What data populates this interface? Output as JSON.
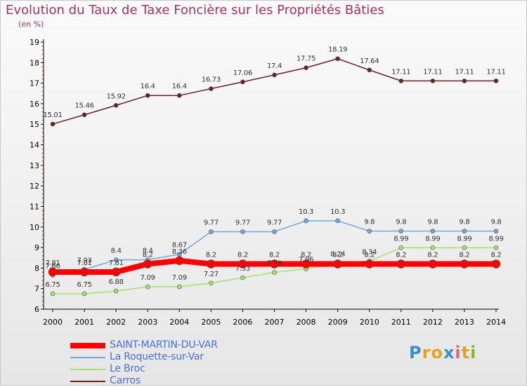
{
  "title": "Evolution du Taux de Taxe Foncière sur les Propriétés Bâties",
  "subtitle": "(en %)",
  "logo": {
    "text": "Proxiti",
    "letters": [
      "P",
      "r",
      "o",
      "x",
      "i",
      "t",
      "i"
    ],
    "colors": [
      "#3a8fd0",
      "#e8a020",
      "#e8a020",
      "#3a8fd0",
      "#e06080",
      "#e8a020",
      "#80b830"
    ]
  },
  "legend": [
    {
      "label": "SAINT-MARTIN-DU-VAR",
      "color": "#ff0000"
    },
    {
      "label": "La Roquette-sur-Var",
      "color": "#6fa8dc"
    },
    {
      "label": "Le Broc",
      "color": "#a8e070"
    },
    {
      "label": "Carros",
      "color": "#6b1f1f"
    }
  ],
  "chart_data": {
    "type": "line",
    "title": "Evolution du Taux de Taxe Foncière sur les Propriétés Bâties",
    "ylabel": "(en %)",
    "x": [
      "2000",
      "2001",
      "2002",
      "2003",
      "2004",
      "2005",
      "2006",
      "2007",
      "2008",
      "2009",
      "2010",
      "2011",
      "2012",
      "2013",
      "2014"
    ],
    "ylim": [
      6,
      19
    ],
    "yticks": [
      "6",
      "7",
      "8",
      "9",
      "10",
      "11",
      "12",
      "13",
      "14",
      "15",
      "16",
      "17",
      "18",
      "19"
    ],
    "grid": false,
    "legend_position": "bottom-left",
    "series": [
      {
        "name": "Carros",
        "color": "#6b1f1f",
        "values": [
          15.01,
          15.46,
          15.92,
          16.4,
          16.4,
          16.73,
          17.06,
          17.4,
          17.75,
          18.19,
          17.64,
          17.11,
          17.11,
          17.11,
          17.11
        ],
        "labels": [
          "15.01",
          "15.46",
          "15.92",
          "16.4",
          "16.4",
          "16.73",
          "17.06",
          "17.4",
          "17.75",
          "18.19",
          "17.64",
          "17.11",
          "17.11",
          "17.11",
          "17.11"
        ]
      },
      {
        "name": "La Roquette-sur-Var",
        "color": "#6fa8dc",
        "values": [
          7.66,
          7.93,
          8.4,
          8.4,
          8.67,
          9.77,
          9.77,
          9.77,
          10.3,
          10.3,
          9.8,
          9.8,
          9.8,
          9.8,
          9.8
        ],
        "labels": [
          "7.66",
          "7.93",
          "8.4",
          "8.4",
          "8.67",
          "9.77",
          "9.77",
          "9.77",
          "10.3",
          "10.3",
          "9.8",
          "9.8",
          "9.8",
          "9.8",
          "9.8"
        ]
      },
      {
        "name": "Le Broc",
        "color": "#a8e070",
        "values": [
          6.75,
          6.75,
          6.88,
          7.09,
          7.09,
          7.27,
          7.53,
          7.79,
          7.96,
          8.24,
          8.34,
          8.99,
          8.99,
          8.99,
          8.99
        ],
        "labels": [
          "6.75",
          "6.75",
          "6.88",
          "7.09",
          "7.09",
          "7.27",
          "7.53",
          "7.79",
          "7.96",
          "8.24",
          "8.34",
          "8.99",
          "8.99",
          "8.99",
          "8.99"
        ]
      },
      {
        "name": "SAINT-MARTIN-DU-VAR",
        "color": "#ff0000",
        "values": [
          7.81,
          7.81,
          7.81,
          8.2,
          8.36,
          8.2,
          8.2,
          8.2,
          8.2,
          8.2,
          8.2,
          8.2,
          8.2,
          8.2,
          8.2
        ],
        "labels": [
          "7.81",
          "7.81",
          "7.81",
          "8.2",
          "8.36",
          "8.2",
          "8.2",
          "8.2",
          "8.2",
          "8.2",
          "8.2",
          "8.2",
          "8.2",
          "8.2",
          "8.2"
        ]
      }
    ]
  }
}
